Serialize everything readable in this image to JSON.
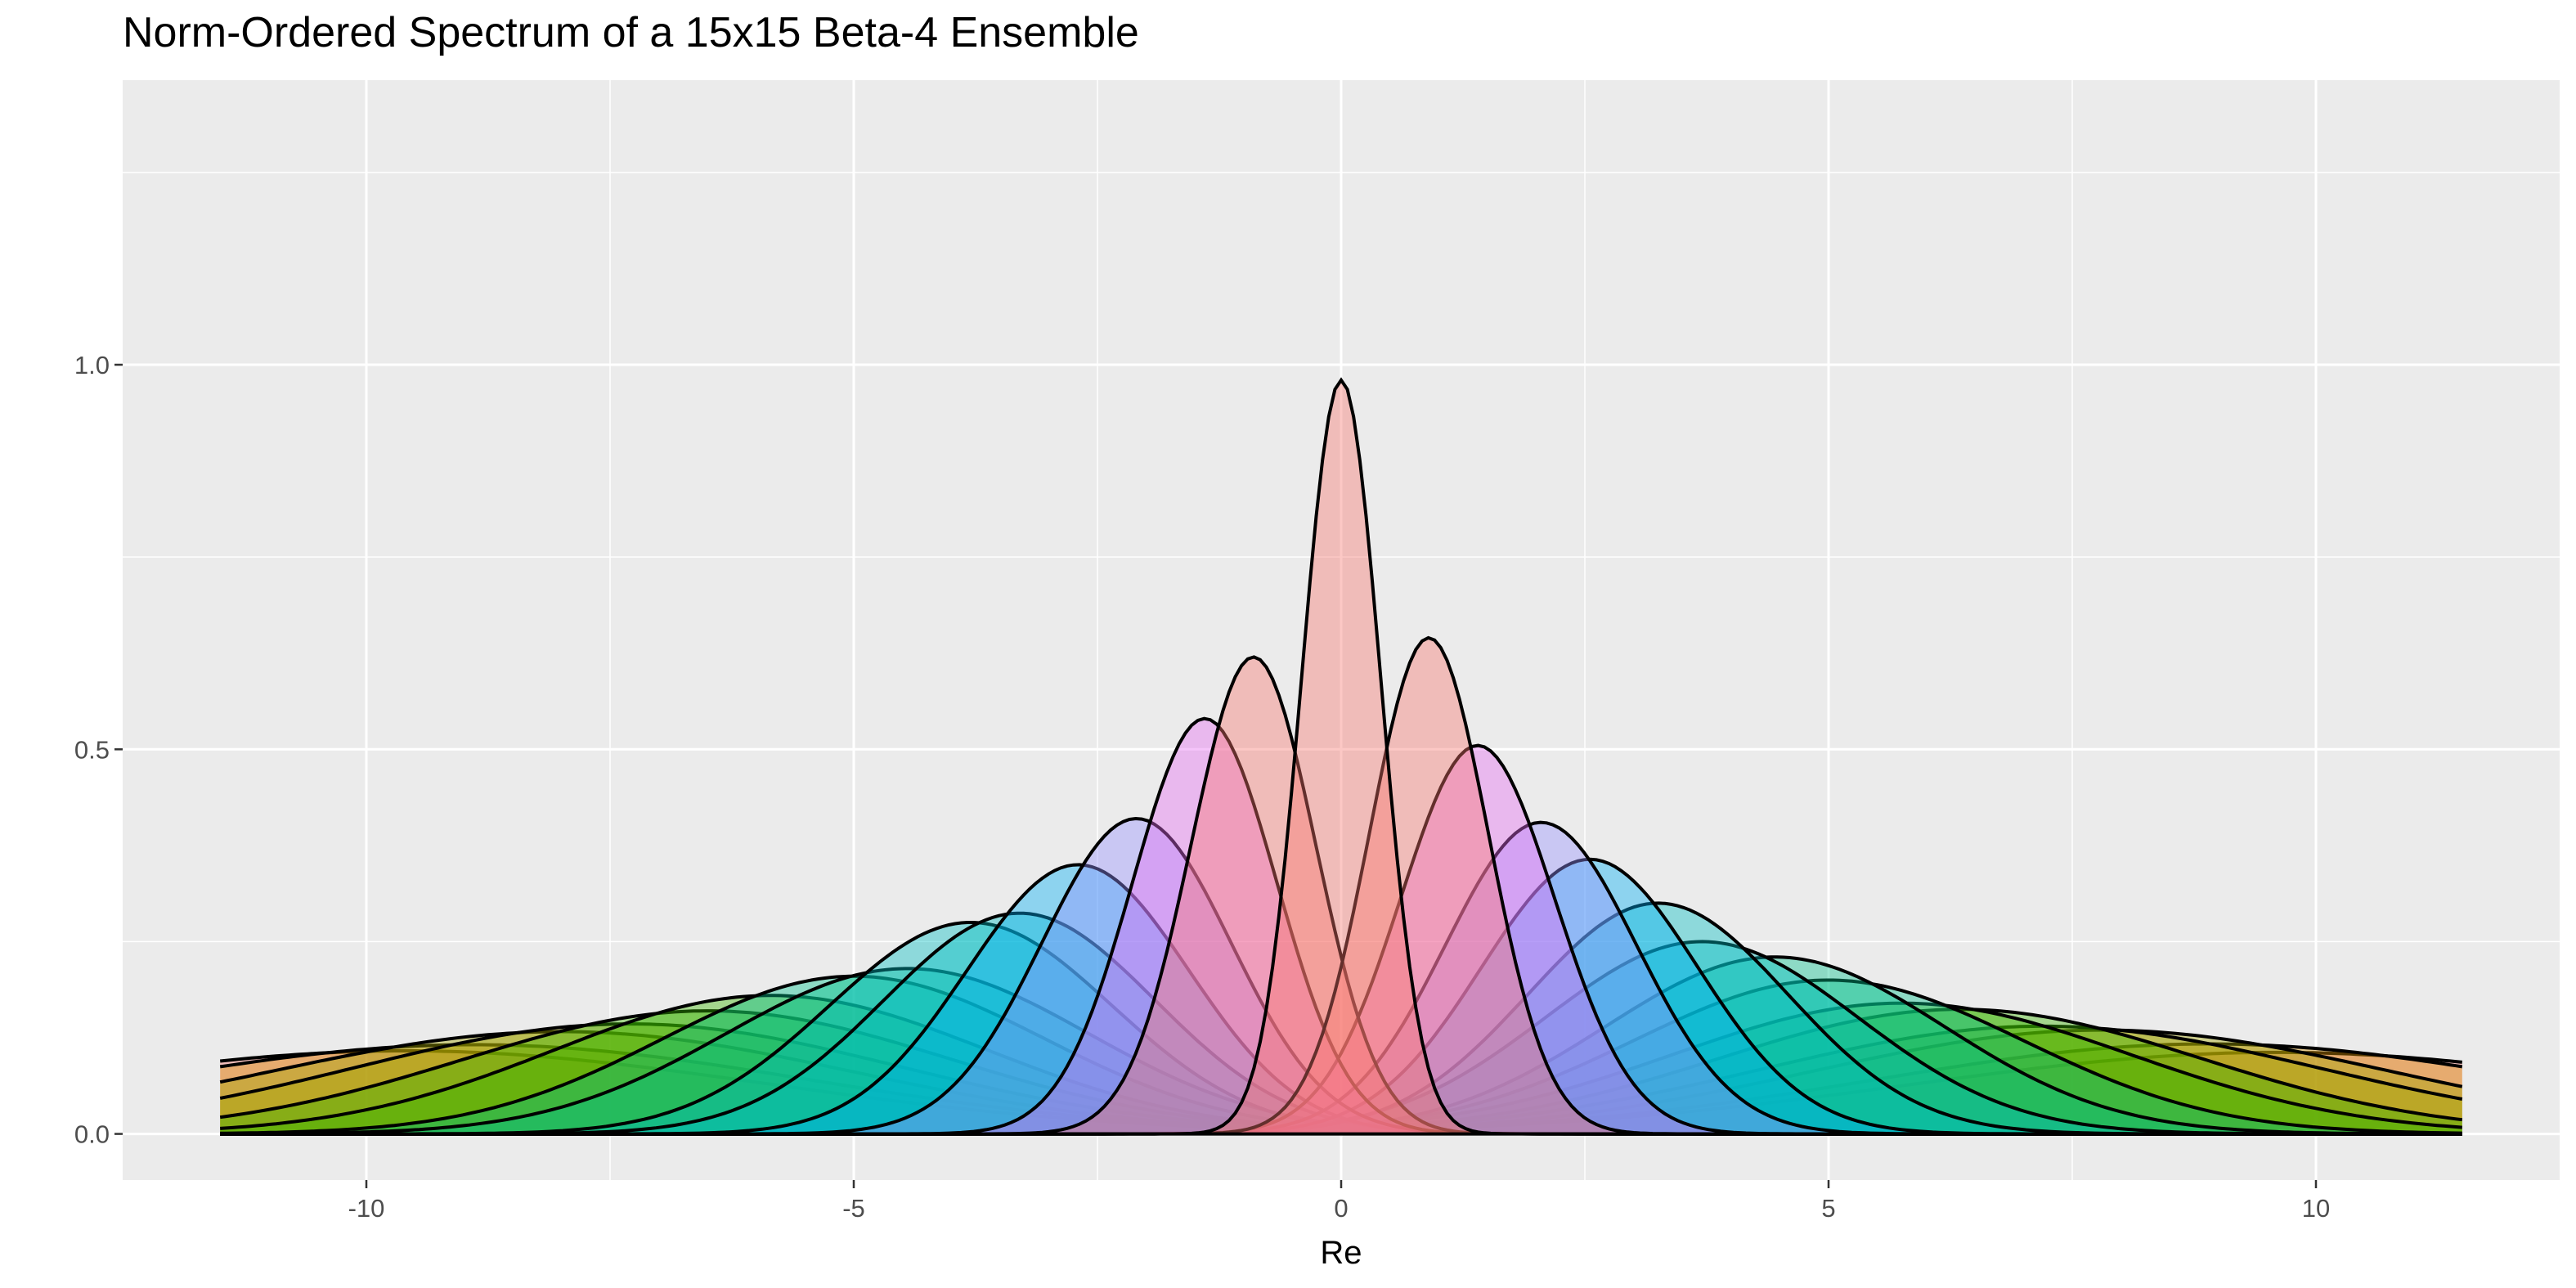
{
  "chart_data": {
    "type": "area",
    "title": "Norm-Ordered Spectrum of a 15x15 Beta-4 Ensemble",
    "xlabel": "Re",
    "ylabel": "",
    "xlim": [
      -12.5,
      12.5
    ],
    "ylim": [
      -0.06,
      1.37
    ],
    "x_range_drawn": [
      -11.5,
      11.5
    ],
    "xticks": [
      -10,
      -5,
      0,
      5,
      10
    ],
    "xtick_labels": [
      "-10",
      "-5",
      "0",
      "5",
      "10"
    ],
    "yticks": [
      0.0,
      0.5,
      1.0
    ],
    "ytick_labels": [
      "0.0",
      "0.5",
      "1.0"
    ],
    "grid": true,
    "legend": "none",
    "outline_color": "#000000",
    "panel_background": "#EBEBEB",
    "fill_opacity": 0.4,
    "series": [
      {
        "mean": 0.0,
        "sd": 0.405,
        "peak": 0.98,
        "color": "#F8766D"
      },
      {
        "mean": -0.9,
        "sd": 0.64,
        "peak": 0.62,
        "color": "#F8766D"
      },
      {
        "mean": 0.9,
        "sd": 0.61,
        "peak": 0.645,
        "color": "#F8766D"
      },
      {
        "mean": -1.4,
        "sd": 0.74,
        "peak": 0.54,
        "color": "#E76BF3"
      },
      {
        "mean": 1.4,
        "sd": 0.79,
        "peak": 0.505,
        "color": "#E76BF3"
      },
      {
        "mean": -2.1,
        "sd": 0.97,
        "peak": 0.41,
        "color": "#9590FF"
      },
      {
        "mean": 2.05,
        "sd": 0.98,
        "peak": 0.405,
        "color": "#9590FF"
      },
      {
        "mean": -2.7,
        "sd": 1.14,
        "peak": 0.35,
        "color": "#00B0F6"
      },
      {
        "mean": 2.55,
        "sd": 1.11,
        "peak": 0.357,
        "color": "#00B0F6"
      },
      {
        "mean": -3.3,
        "sd": 1.39,
        "peak": 0.287,
        "color": "#00BFC4"
      },
      {
        "mean": 3.25,
        "sd": 1.33,
        "peak": 0.3,
        "color": "#00BFC4"
      },
      {
        "mean": -3.8,
        "sd": 1.45,
        "peak": 0.275,
        "color": "#00BFC4"
      },
      {
        "mean": 3.7,
        "sd": 1.6,
        "peak": 0.25,
        "color": "#00BFC4"
      },
      {
        "mean": -4.45,
        "sd": 1.86,
        "peak": 0.215,
        "color": "#00C08B"
      },
      {
        "mean": 4.45,
        "sd": 1.74,
        "peak": 0.23,
        "color": "#00C08B"
      },
      {
        "mean": -5.0,
        "sd": 1.95,
        "peak": 0.205,
        "color": "#00C08B"
      },
      {
        "mean": 5.0,
        "sd": 2.0,
        "peak": 0.2,
        "color": "#00C08B"
      },
      {
        "mean": -5.85,
        "sd": 2.22,
        "peak": 0.18,
        "color": "#39B600"
      },
      {
        "mean": 5.75,
        "sd": 2.35,
        "peak": 0.17,
        "color": "#39B600"
      },
      {
        "mean": -6.5,
        "sd": 2.5,
        "peak": 0.16,
        "color": "#39B600"
      },
      {
        "mean": 6.35,
        "sd": 2.47,
        "peak": 0.162,
        "color": "#39B600"
      },
      {
        "mean": -7.3,
        "sd": 2.8,
        "peak": 0.143,
        "color": "#A3A500"
      },
      {
        "mean": 7.2,
        "sd": 2.86,
        "peak": 0.14,
        "color": "#A3A500"
      },
      {
        "mean": -8.0,
        "sd": 3.0,
        "peak": 0.133,
        "color": "#A3A500"
      },
      {
        "mean": 7.8,
        "sd": 2.95,
        "peak": 0.135,
        "color": "#A3A500"
      },
      {
        "mean": -8.9,
        "sd": 3.45,
        "peak": 0.116,
        "color": "#D89000"
      },
      {
        "mean": 8.9,
        "sd": 3.4,
        "peak": 0.117,
        "color": "#D89000"
      },
      {
        "mean": -9.6,
        "sd": 3.7,
        "peak": 0.108,
        "color": "#F8766D"
      },
      {
        "mean": 9.6,
        "sd": 3.75,
        "peak": 0.106,
        "color": "#F8766D"
      }
    ]
  }
}
